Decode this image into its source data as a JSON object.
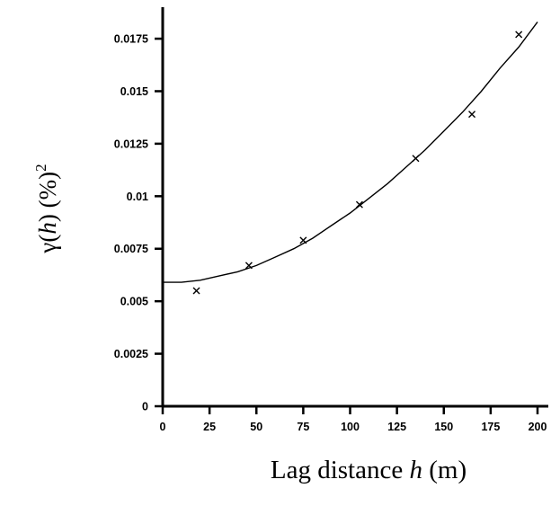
{
  "chart_data": {
    "type": "scatter",
    "title": "",
    "xlabel": "Lag distance h (m)",
    "xlabel_parts": {
      "before": "Lag distance ",
      "var": "h",
      "after": " (m)"
    },
    "ylabel": "γ(h) (%)²",
    "ylabel_parts": {
      "gamma": "γ(",
      "h": "h",
      "close": ")",
      "paren": " (%)",
      "exp": "2"
    },
    "xlim": [
      0,
      200
    ],
    "ylim": [
      0,
      0.019
    ],
    "x_ticks": [
      0,
      25,
      50,
      75,
      100,
      125,
      150,
      175,
      200
    ],
    "x_tick_labels": [
      "0",
      "25",
      "50",
      "75",
      "100",
      "125",
      "150",
      "175",
      "200"
    ],
    "y_ticks": [
      0,
      0.0025,
      0.005,
      0.0075,
      0.01,
      0.0125,
      0.015,
      0.0175
    ],
    "y_tick_labels": [
      "0",
      "0.0025",
      "0.005",
      "0.0075",
      "0.01",
      "0.0125",
      "0.015",
      "0.0175"
    ],
    "grid": false,
    "series": [
      {
        "kind": "points",
        "marker": "x",
        "x": [
          18,
          46,
          75,
          105,
          135,
          165,
          190
        ],
        "y": [
          0.0055,
          0.0067,
          0.0079,
          0.0096,
          0.0118,
          0.0139,
          0.0177
        ]
      },
      {
        "kind": "curve",
        "x": [
          0,
          10,
          20,
          30,
          40,
          50,
          60,
          70,
          80,
          90,
          100,
          110,
          120,
          130,
          140,
          150,
          160,
          170,
          180,
          190,
          200
        ],
        "y": [
          0.0059,
          0.0059,
          0.006,
          0.0062,
          0.0064,
          0.0067,
          0.0071,
          0.0075,
          0.008,
          0.0086,
          0.0092,
          0.0099,
          0.0106,
          0.0114,
          0.0122,
          0.0131,
          0.014,
          0.015,
          0.0161,
          0.0171,
          0.0183
        ]
      }
    ]
  }
}
